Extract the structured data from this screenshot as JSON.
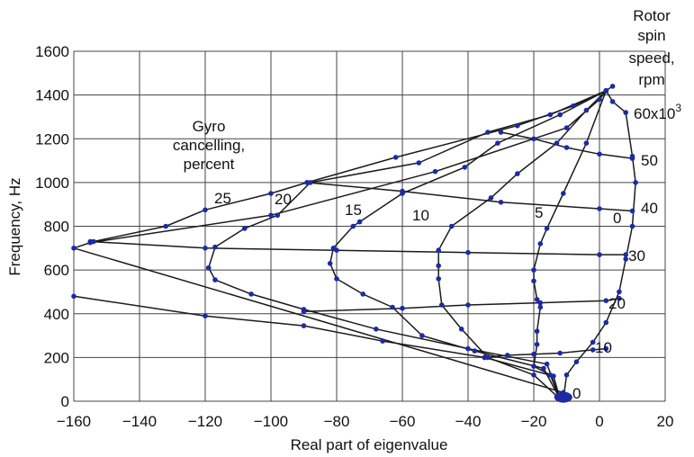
{
  "chart_data": {
    "type": "line",
    "title": "",
    "xlabel": "Real part of eigenvalue",
    "ylabel": "Frequency, Hz",
    "xlim": [
      -160,
      20
    ],
    "ylim": [
      0,
      1600
    ],
    "grid": true,
    "x_ticks": [
      "−160",
      "−140",
      "−120",
      "−100",
      "−80",
      "−60",
      "−40",
      "−20",
      "0",
      "20"
    ],
    "y_ticks": [
      "0",
      "200",
      "400",
      "600",
      "800",
      "1000",
      "1200",
      "1400",
      "1600"
    ],
    "colors": {
      "grid": "#444444",
      "line": "#1b1b1b",
      "marker": "#1c2aa6"
    },
    "annotations": {
      "gyro_title": [
        "Gyro",
        "cancelling,",
        "percent"
      ],
      "speed_title": [
        "Rotor",
        "spin",
        "speed,",
        "rpm"
      ],
      "gyro_percent_labels": [
        "25",
        "20",
        "15",
        "10",
        "5",
        "0"
      ],
      "speed_labels": [
        "60x10",
        "50",
        "40",
        "30",
        "20",
        "10",
        "0"
      ],
      "speed_exponent": "3"
    },
    "gyro_series": [
      {
        "label": "25",
        "points": [
          [
            -12,
            10
          ],
          [
            -14,
            115
          ],
          [
            -35,
            200
          ],
          [
            -66,
            275
          ],
          [
            -90,
            345
          ],
          [
            -120,
            390
          ],
          [
            -160,
            480
          ]
        ]
      },
      {
        "label": "25",
        "points": [
          [
            -11,
            40
          ],
          [
            -160,
            700
          ],
          [
            -154,
            730
          ],
          [
            -132,
            800
          ],
          [
            -120,
            875
          ],
          [
            -100,
            950
          ],
          [
            -89,
            1000
          ],
          [
            -62,
            1115
          ],
          [
            -25,
            1260
          ],
          [
            -8,
            1350
          ],
          [
            2,
            1420
          ]
        ]
      },
      {
        "label": "20",
        "points": [
          [
            -12,
            10
          ],
          [
            -16,
            170
          ],
          [
            -40,
            240
          ],
          [
            -68,
            330
          ],
          [
            -90,
            420
          ],
          [
            -106,
            490
          ],
          [
            -117,
            555
          ],
          [
            -119,
            610
          ],
          [
            -117,
            705
          ],
          [
            -108,
            790
          ],
          [
            -98,
            850
          ],
          [
            -88,
            1000
          ],
          [
            -55,
            1090
          ],
          [
            -34,
            1230
          ],
          [
            -15,
            1310
          ],
          [
            2,
            1420
          ]
        ]
      },
      {
        "label": "15",
        "points": [
          [
            -12,
            10
          ],
          [
            -17,
            150
          ],
          [
            -38,
            230
          ],
          [
            -54,
            300
          ],
          [
            -63,
            430
          ],
          [
            -72,
            490
          ],
          [
            -80,
            560
          ],
          [
            -82,
            630
          ],
          [
            -81,
            700
          ],
          [
            -75,
            800
          ],
          [
            -73,
            820
          ],
          [
            -60,
            950
          ],
          [
            -41,
            1070
          ],
          [
            -31,
            1180
          ],
          [
            -12,
            1310
          ],
          [
            2,
            1420
          ]
        ]
      },
      {
        "label": "10",
        "points": [
          [
            -12,
            10
          ],
          [
            -20,
            120
          ],
          [
            -34,
            200
          ],
          [
            -42,
            330
          ],
          [
            -48,
            440
          ],
          [
            -49,
            560
          ],
          [
            -49,
            620
          ],
          [
            -49,
            690
          ],
          [
            -45,
            800
          ],
          [
            -33,
            930
          ],
          [
            -25,
            1040
          ],
          [
            -13,
            1180
          ],
          [
            -4,
            1330
          ],
          [
            2,
            1420
          ]
        ]
      },
      {
        "label": "5",
        "points": [
          [
            -12,
            10
          ],
          [
            -15,
            120
          ],
          [
            -20,
            160
          ],
          [
            -19,
            260
          ],
          [
            -19,
            320
          ],
          [
            -18,
            430
          ],
          [
            -19,
            465
          ],
          [
            -20,
            550
          ],
          [
            -20,
            600
          ],
          [
            -18,
            720
          ],
          [
            -16,
            790
          ],
          [
            -11,
            950
          ],
          [
            -4,
            1180
          ],
          [
            2,
            1420
          ]
        ]
      },
      {
        "label": "0",
        "points": [
          [
            -11,
            10
          ],
          [
            -10,
            120
          ],
          [
            -7,
            180
          ],
          [
            -2,
            270
          ],
          [
            2,
            360
          ],
          [
            6,
            500
          ],
          [
            8,
            650
          ],
          [
            10,
            800
          ],
          [
            11,
            1000
          ],
          [
            10,
            1120
          ],
          [
            8,
            1320
          ],
          [
            4,
            1370
          ],
          [
            2,
            1420
          ]
        ]
      }
    ],
    "speed_series": [
      {
        "label": "60x10",
        "points": [
          [
            -155,
            725
          ],
          [
            -100,
            850
          ],
          [
            -50,
            1050
          ],
          [
            -10,
            1250
          ],
          [
            0,
            1380
          ],
          [
            2,
            1420
          ],
          [
            4,
            1440
          ]
        ]
      },
      {
        "label": "50",
        "points": [
          [
            -30,
            1230
          ],
          [
            -20,
            1200
          ],
          [
            -10,
            1160
          ],
          [
            0,
            1130
          ],
          [
            10,
            1110
          ]
        ]
      },
      {
        "label": "40",
        "points": [
          [
            -89,
            1000
          ],
          [
            -60,
            960
          ],
          [
            -30,
            910
          ],
          [
            0,
            880
          ],
          [
            10,
            870
          ]
        ]
      },
      {
        "label": "30",
        "points": [
          [
            -155,
            730
          ],
          [
            -120,
            700
          ],
          [
            -80,
            690
          ],
          [
            -40,
            680
          ],
          [
            0,
            670
          ],
          [
            8,
            670
          ]
        ]
      },
      {
        "label": "20",
        "points": [
          [
            -90,
            410
          ],
          [
            -60,
            425
          ],
          [
            -40,
            440
          ],
          [
            -18,
            450
          ],
          [
            2,
            460
          ],
          [
            6,
            470
          ]
        ]
      },
      {
        "label": "10",
        "points": [
          [
            -35,
            200
          ],
          [
            -28,
            210
          ],
          [
            -20,
            215
          ],
          [
            -12,
            220
          ],
          [
            -2,
            235
          ],
          [
            2,
            240
          ]
        ]
      },
      {
        "label": "0",
        "points": [
          [
            -13,
            20
          ],
          [
            -12,
            10
          ],
          [
            -11,
            5
          ],
          [
            -10,
            12
          ]
        ]
      }
    ]
  }
}
